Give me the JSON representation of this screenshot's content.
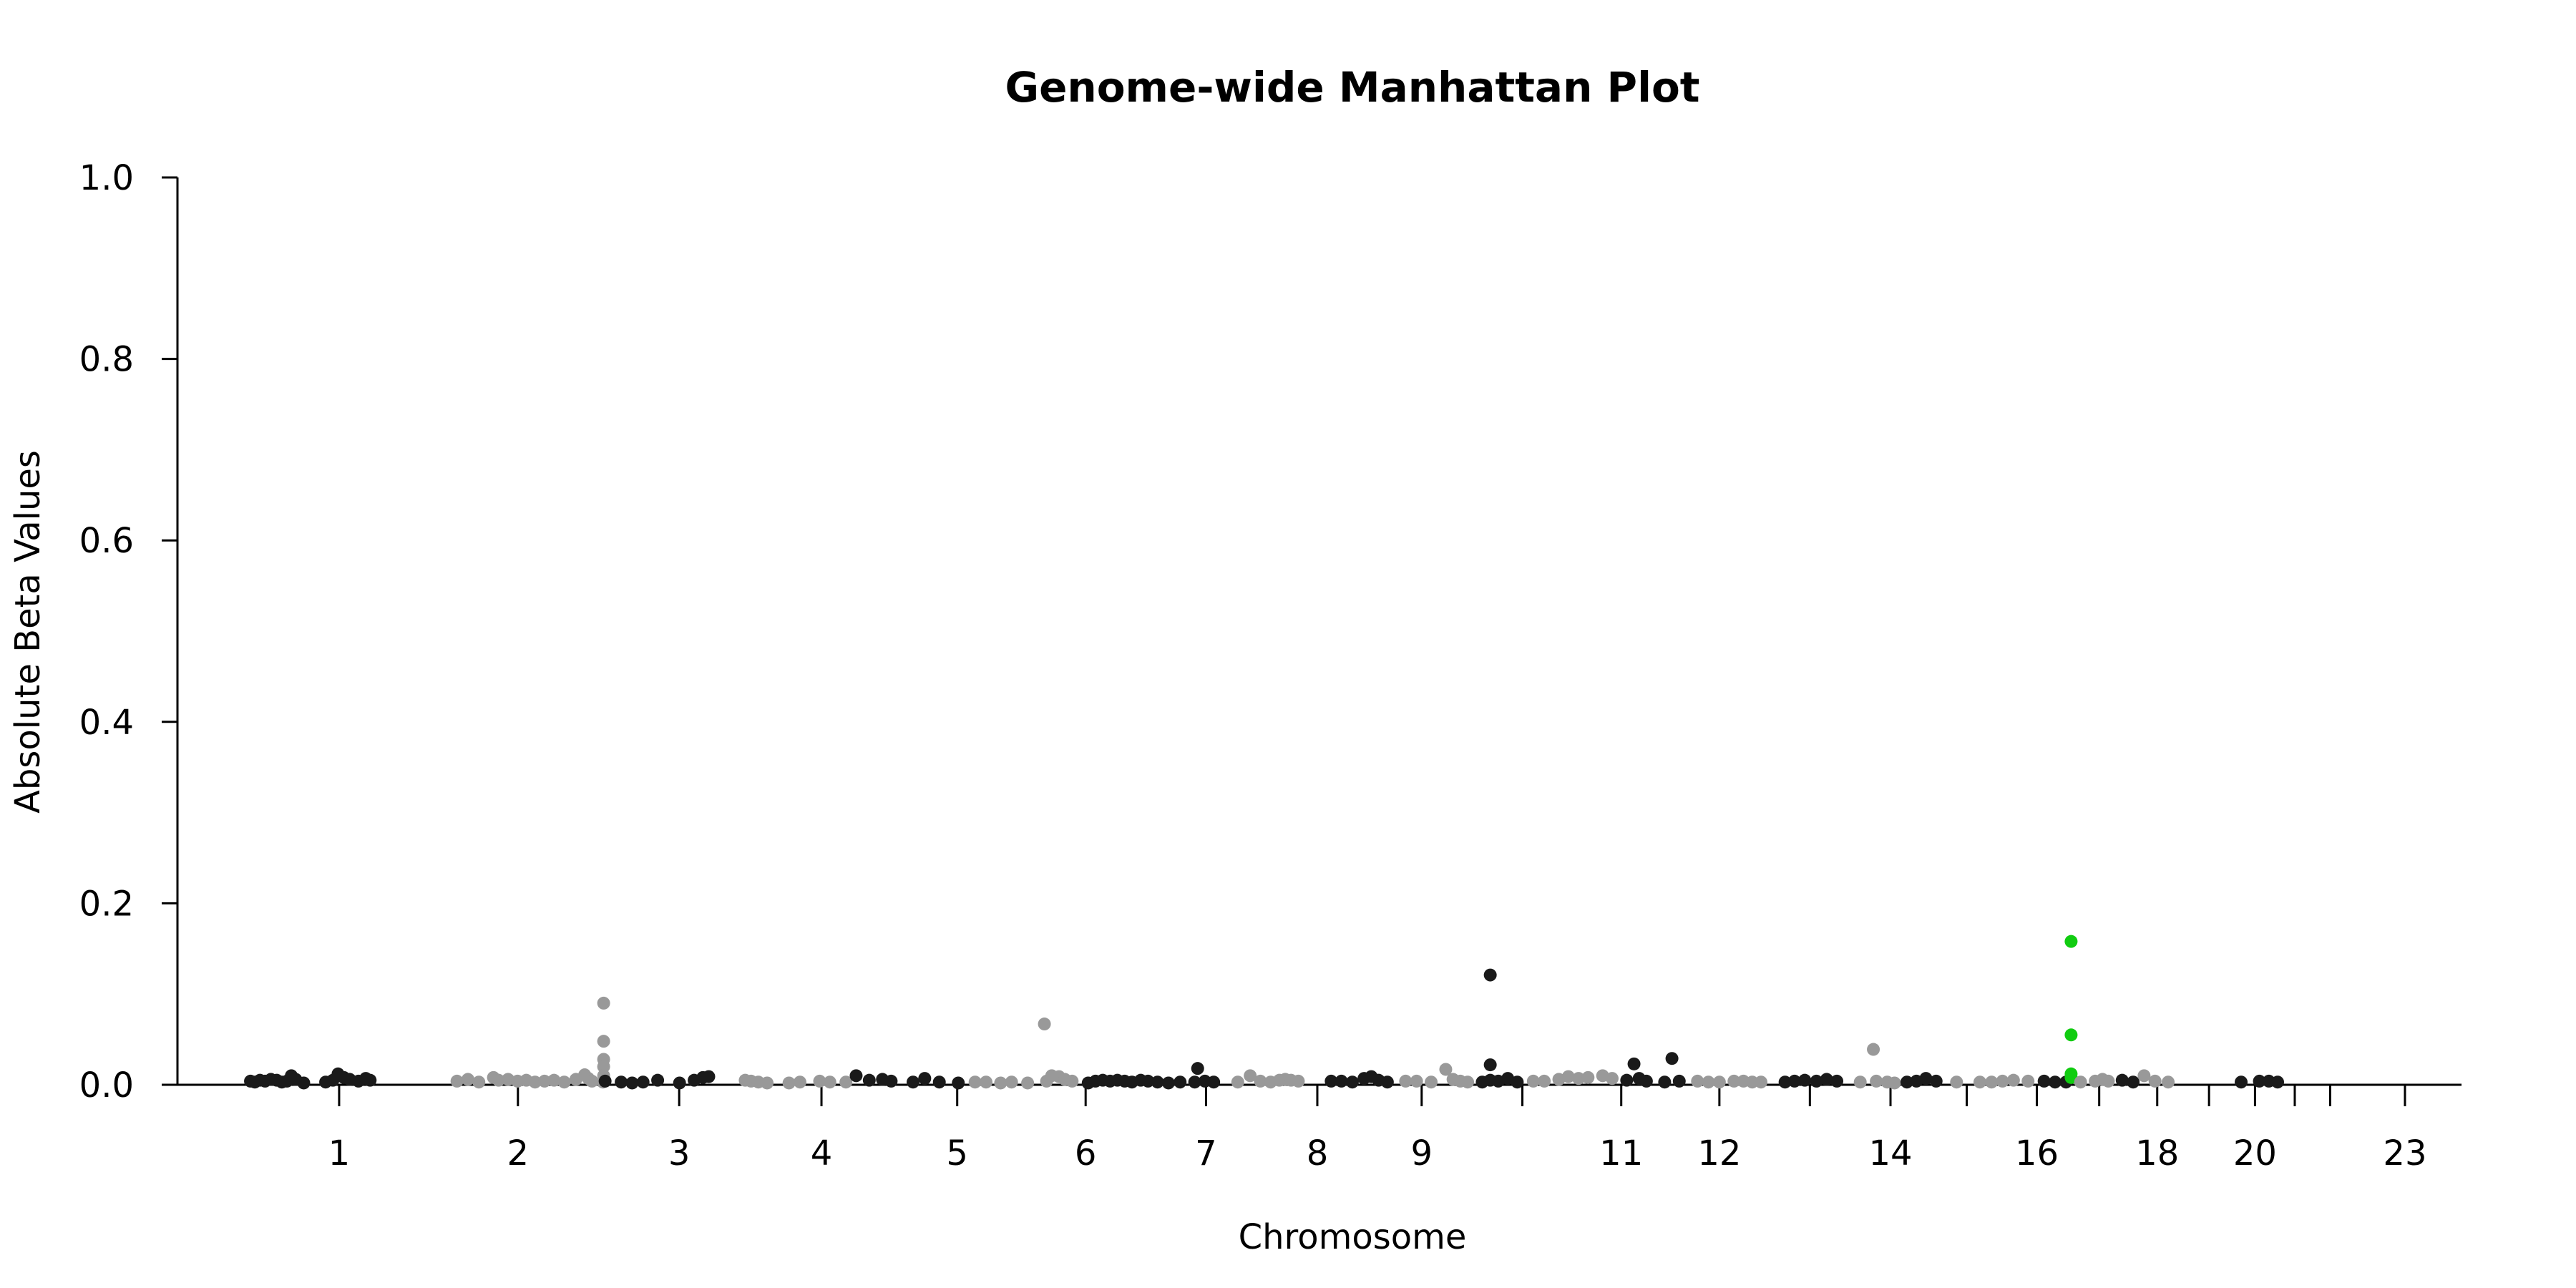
{
  "chart_data": {
    "type": "scatter",
    "title": "Genome-wide Manhattan Plot",
    "xlabel": "Chromosome",
    "ylabel": "Absolute Beta Values",
    "ylim": [
      0,
      1.0
    ],
    "yticks": [
      "0.0",
      "0.2",
      "0.4",
      "0.6",
      "0.8",
      "1.0"
    ],
    "xticks": [
      "1",
      "2",
      "3",
      "4",
      "5",
      "6",
      "7",
      "8",
      "9",
      "11",
      "12",
      "14",
      "16",
      "18",
      "20",
      "23"
    ],
    "grid": false,
    "colors": {
      "dark": "#1a1a1a",
      "light": "#999999",
      "highlight": "#11cc11"
    },
    "chromosomes": [
      {
        "chr": "1",
        "start": 0,
        "end": 247
      },
      {
        "chr": "2",
        "start": 247,
        "end": 490
      },
      {
        "chr": "3",
        "start": 490,
        "end": 689
      },
      {
        "chr": "4",
        "start": 689,
        "end": 880
      },
      {
        "chr": "5",
        "start": 880,
        "end": 1061
      },
      {
        "chr": "6",
        "start": 1061,
        "end": 1232
      },
      {
        "chr": "7",
        "start": 1232,
        "end": 1391
      },
      {
        "chr": "8",
        "start": 1391,
        "end": 1537
      },
      {
        "chr": "9",
        "start": 1537,
        "end": 1677
      },
      {
        "chr": "10",
        "start": 1677,
        "end": 1813
      },
      {
        "chr": "11",
        "start": 1813,
        "end": 1948
      },
      {
        "chr": "12",
        "start": 1948,
        "end": 2082
      },
      {
        "chr": "13",
        "start": 2082,
        "end": 2196
      },
      {
        "chr": "14",
        "start": 2196,
        "end": 2303
      },
      {
        "chr": "15",
        "start": 2303,
        "end": 2405
      },
      {
        "chr": "16",
        "start": 2405,
        "end": 2495
      },
      {
        "chr": "17",
        "start": 2495,
        "end": 2576
      },
      {
        "chr": "18",
        "start": 2576,
        "end": 2654
      },
      {
        "chr": "19",
        "start": 2654,
        "end": 2718
      },
      {
        "chr": "20",
        "start": 2718,
        "end": 2780
      },
      {
        "chr": "21",
        "start": 2780,
        "end": 2827
      },
      {
        "chr": "22",
        "start": 2827,
        "end": 2877
      },
      {
        "chr": "23",
        "start": 2877,
        "end": 3032
      }
    ],
    "points": [
      {
        "chr": "1",
        "pos": 2,
        "y": 0.004
      },
      {
        "chr": "1",
        "pos": 8,
        "y": 0.003
      },
      {
        "chr": "1",
        "pos": 15,
        "y": 0.005
      },
      {
        "chr": "1",
        "pos": 22,
        "y": 0.004
      },
      {
        "chr": "1",
        "pos": 30,
        "y": 0.006
      },
      {
        "chr": "1",
        "pos": 38,
        "y": 0.005
      },
      {
        "chr": "1",
        "pos": 45,
        "y": 0.003
      },
      {
        "chr": "1",
        "pos": 52,
        "y": 0.004
      },
      {
        "chr": "1",
        "pos": 58,
        "y": 0.01
      },
      {
        "chr": "1",
        "pos": 64,
        "y": 0.006
      },
      {
        "chr": "1",
        "pos": 75,
        "y": 0.002
      },
      {
        "chr": "1",
        "pos": 105,
        "y": 0.003
      },
      {
        "chr": "1",
        "pos": 115,
        "y": 0.005
      },
      {
        "chr": "1",
        "pos": 122,
        "y": 0.012
      },
      {
        "chr": "1",
        "pos": 130,
        "y": 0.008
      },
      {
        "chr": "1",
        "pos": 138,
        "y": 0.006
      },
      {
        "chr": "1",
        "pos": 150,
        "y": 0.004
      },
      {
        "chr": "1",
        "pos": 160,
        "y": 0.007
      },
      {
        "chr": "1",
        "pos": 166,
        "y": 0.005
      },
      {
        "chr": "2",
        "pos": 285,
        "y": 0.004
      },
      {
        "chr": "2",
        "pos": 300,
        "y": 0.006
      },
      {
        "chr": "2",
        "pos": 315,
        "y": 0.003
      },
      {
        "chr": "2",
        "pos": 335,
        "y": 0.008
      },
      {
        "chr": "2",
        "pos": 342,
        "y": 0.005
      },
      {
        "chr": "2",
        "pos": 355,
        "y": 0.006
      },
      {
        "chr": "2",
        "pos": 368,
        "y": 0.004
      },
      {
        "chr": "2",
        "pos": 380,
        "y": 0.005
      },
      {
        "chr": "2",
        "pos": 392,
        "y": 0.003
      },
      {
        "chr": "2",
        "pos": 405,
        "y": 0.004
      },
      {
        "chr": "2",
        "pos": 418,
        "y": 0.005
      },
      {
        "chr": "2",
        "pos": 432,
        "y": 0.003
      },
      {
        "chr": "2",
        "pos": 448,
        "y": 0.006
      },
      {
        "chr": "2",
        "pos": 460,
        "y": 0.011
      },
      {
        "chr": "2",
        "pos": 465,
        "y": 0.007
      },
      {
        "chr": "2",
        "pos": 470,
        "y": 0.004
      },
      {
        "chr": "2",
        "pos": 485,
        "y": 0.003
      },
      {
        "chr": "2",
        "pos": 486,
        "y": 0.09
      },
      {
        "chr": "2",
        "pos": 486,
        "y": 0.048
      },
      {
        "chr": "2",
        "pos": 486,
        "y": 0.028
      },
      {
        "chr": "2",
        "pos": 486,
        "y": 0.02
      },
      {
        "chr": "2",
        "pos": 486,
        "y": 0.01
      },
      {
        "chr": "3",
        "pos": 488,
        "y": 0.004
      },
      {
        "chr": "3",
        "pos": 510,
        "y": 0.003
      },
      {
        "chr": "3",
        "pos": 525,
        "y": 0.002
      },
      {
        "chr": "3",
        "pos": 540,
        "y": 0.003
      },
      {
        "chr": "3",
        "pos": 560,
        "y": 0.005
      },
      {
        "chr": "3",
        "pos": 590,
        "y": 0.002
      },
      {
        "chr": "3",
        "pos": 610,
        "y": 0.005
      },
      {
        "chr": "3",
        "pos": 622,
        "y": 0.008
      },
      {
        "chr": "3",
        "pos": 630,
        "y": 0.009
      },
      {
        "chr": "4",
        "pos": 680,
        "y": 0.005
      },
      {
        "chr": "4",
        "pos": 688,
        "y": 0.004
      },
      {
        "chr": "4",
        "pos": 698,
        "y": 0.003
      },
      {
        "chr": "4",
        "pos": 710,
        "y": 0.002
      },
      {
        "chr": "4",
        "pos": 740,
        "y": 0.002
      },
      {
        "chr": "4",
        "pos": 755,
        "y": 0.003
      },
      {
        "chr": "4",
        "pos": 782,
        "y": 0.004
      },
      {
        "chr": "4",
        "pos": 796,
        "y": 0.003
      },
      {
        "chr": "4",
        "pos": 818,
        "y": 0.003
      },
      {
        "chr": "5",
        "pos": 832,
        "y": 0.01
      },
      {
        "chr": "5",
        "pos": 850,
        "y": 0.005
      },
      {
        "chr": "5",
        "pos": 868,
        "y": 0.006
      },
      {
        "chr": "5",
        "pos": 880,
        "y": 0.004
      },
      {
        "chr": "5",
        "pos": 910,
        "y": 0.003
      },
      {
        "chr": "5",
        "pos": 926,
        "y": 0.007
      },
      {
        "chr": "5",
        "pos": 946,
        "y": 0.003
      },
      {
        "chr": "5",
        "pos": 972,
        "y": 0.002
      },
      {
        "chr": "6",
        "pos": 995,
        "y": 0.003
      },
      {
        "chr": "6",
        "pos": 1010,
        "y": 0.003
      },
      {
        "chr": "6",
        "pos": 1030,
        "y": 0.002
      },
      {
        "chr": "6",
        "pos": 1045,
        "y": 0.003
      },
      {
        "chr": "6",
        "pos": 1067,
        "y": 0.002
      },
      {
        "chr": "6",
        "pos": 1090,
        "y": 0.067
      },
      {
        "chr": "6",
        "pos": 1093,
        "y": 0.004
      },
      {
        "chr": "6",
        "pos": 1100,
        "y": 0.01
      },
      {
        "chr": "6",
        "pos": 1110,
        "y": 0.009
      },
      {
        "chr": "6",
        "pos": 1118,
        "y": 0.006
      },
      {
        "chr": "6",
        "pos": 1128,
        "y": 0.004
      },
      {
        "chr": "7",
        "pos": 1150,
        "y": 0.002
      },
      {
        "chr": "7",
        "pos": 1160,
        "y": 0.004
      },
      {
        "chr": "7",
        "pos": 1170,
        "y": 0.005
      },
      {
        "chr": "7",
        "pos": 1180,
        "y": 0.004
      },
      {
        "chr": "7",
        "pos": 1190,
        "y": 0.005
      },
      {
        "chr": "7",
        "pos": 1200,
        "y": 0.004
      },
      {
        "chr": "7",
        "pos": 1210,
        "y": 0.003
      },
      {
        "chr": "7",
        "pos": 1222,
        "y": 0.005
      },
      {
        "chr": "7",
        "pos": 1232,
        "y": 0.004
      },
      {
        "chr": "7",
        "pos": 1245,
        "y": 0.003
      },
      {
        "chr": "7",
        "pos": 1260,
        "y": 0.002
      },
      {
        "chr": "7",
        "pos": 1276,
        "y": 0.003
      },
      {
        "chr": "7",
        "pos": 1296,
        "y": 0.003
      },
      {
        "chr": "7",
        "pos": 1300,
        "y": 0.018
      },
      {
        "chr": "7",
        "pos": 1310,
        "y": 0.004
      },
      {
        "chr": "7",
        "pos": 1322,
        "y": 0.003
      },
      {
        "chr": "8",
        "pos": 1355,
        "y": 0.003
      },
      {
        "chr": "8",
        "pos": 1372,
        "y": 0.01
      },
      {
        "chr": "8",
        "pos": 1386,
        "y": 0.004
      },
      {
        "chr": "8",
        "pos": 1400,
        "y": 0.003
      },
      {
        "chr": "8",
        "pos": 1412,
        "y": 0.005
      },
      {
        "chr": "8",
        "pos": 1420,
        "y": 0.006
      },
      {
        "chr": "8",
        "pos": 1428,
        "y": 0.005
      },
      {
        "chr": "8",
        "pos": 1438,
        "y": 0.004
      },
      {
        "chr": "9",
        "pos": 1483,
        "y": 0.004
      },
      {
        "chr": "9",
        "pos": 1497,
        "y": 0.004
      },
      {
        "chr": "9",
        "pos": 1512,
        "y": 0.003
      },
      {
        "chr": "9",
        "pos": 1528,
        "y": 0.007
      },
      {
        "chr": "9",
        "pos": 1538,
        "y": 0.009
      },
      {
        "chr": "9",
        "pos": 1548,
        "y": 0.005
      },
      {
        "chr": "9",
        "pos": 1560,
        "y": 0.003
      },
      {
        "chr": "10",
        "pos": 1585,
        "y": 0.004
      },
      {
        "chr": "10",
        "pos": 1600,
        "y": 0.004
      },
      {
        "chr": "10",
        "pos": 1620,
        "y": 0.003
      },
      {
        "chr": "10",
        "pos": 1640,
        "y": 0.017
      },
      {
        "chr": "10",
        "pos": 1650,
        "y": 0.006
      },
      {
        "chr": "10",
        "pos": 1660,
        "y": 0.004
      },
      {
        "chr": "10",
        "pos": 1670,
        "y": 0.003
      },
      {
        "chr": "11",
        "pos": 1690,
        "y": 0.003
      },
      {
        "chr": "11",
        "pos": 1701,
        "y": 0.121
      },
      {
        "chr": "11",
        "pos": 1701,
        "y": 0.022
      },
      {
        "chr": "11",
        "pos": 1701,
        "y": 0.005
      },
      {
        "chr": "11",
        "pos": 1712,
        "y": 0.004
      },
      {
        "chr": "11",
        "pos": 1725,
        "y": 0.007
      },
      {
        "chr": "11",
        "pos": 1738,
        "y": 0.003
      },
      {
        "chr": "12",
        "pos": 1760,
        "y": 0.004
      },
      {
        "chr": "12",
        "pos": 1775,
        "y": 0.004
      },
      {
        "chr": "12",
        "pos": 1795,
        "y": 0.006
      },
      {
        "chr": "12",
        "pos": 1808,
        "y": 0.009
      },
      {
        "chr": "12",
        "pos": 1822,
        "y": 0.007
      },
      {
        "chr": "12",
        "pos": 1835,
        "y": 0.008
      },
      {
        "chr": "12",
        "pos": 1855,
        "y": 0.01
      },
      {
        "chr": "12",
        "pos": 1868,
        "y": 0.007
      },
      {
        "chr": "13",
        "pos": 1888,
        "y": 0.005
      },
      {
        "chr": "13",
        "pos": 1898,
        "y": 0.023
      },
      {
        "chr": "13",
        "pos": 1905,
        "y": 0.007
      },
      {
        "chr": "13",
        "pos": 1915,
        "y": 0.004
      },
      {
        "chr": "13",
        "pos": 1940,
        "y": 0.003
      },
      {
        "chr": "13",
        "pos": 1950,
        "y": 0.029
      },
      {
        "chr": "13",
        "pos": 1960,
        "y": 0.004
      },
      {
        "chr": "14",
        "pos": 1985,
        "y": 0.004
      },
      {
        "chr": "14",
        "pos": 2000,
        "y": 0.003
      },
      {
        "chr": "14",
        "pos": 2015,
        "y": 0.003
      },
      {
        "chr": "14",
        "pos": 2035,
        "y": 0.004
      },
      {
        "chr": "14",
        "pos": 2048,
        "y": 0.004
      },
      {
        "chr": "14",
        "pos": 2060,
        "y": 0.003
      },
      {
        "chr": "14",
        "pos": 2072,
        "y": 0.003
      },
      {
        "chr": "15",
        "pos": 2105,
        "y": 0.003
      },
      {
        "chr": "15",
        "pos": 2118,
        "y": 0.004
      },
      {
        "chr": "15",
        "pos": 2132,
        "y": 0.005
      },
      {
        "chr": "15",
        "pos": 2148,
        "y": 0.004
      },
      {
        "chr": "15",
        "pos": 2162,
        "y": 0.006
      },
      {
        "chr": "15",
        "pos": 2176,
        "y": 0.004
      },
      {
        "chr": "16",
        "pos": 2208,
        "y": 0.003
      },
      {
        "chr": "16",
        "pos": 2226,
        "y": 0.039
      },
      {
        "chr": "16",
        "pos": 2230,
        "y": 0.004
      },
      {
        "chr": "16",
        "pos": 2245,
        "y": 0.003
      },
      {
        "chr": "16",
        "pos": 2255,
        "y": 0.002
      },
      {
        "chr": "17",
        "pos": 2272,
        "y": 0.003
      },
      {
        "chr": "17",
        "pos": 2285,
        "y": 0.004
      },
      {
        "chr": "17",
        "pos": 2298,
        "y": 0.007
      },
      {
        "chr": "17",
        "pos": 2312,
        "y": 0.004
      },
      {
        "chr": "18",
        "pos": 2340,
        "y": 0.003
      },
      {
        "chr": "18",
        "pos": 2372,
        "y": 0.003
      },
      {
        "chr": "18",
        "pos": 2388,
        "y": 0.003
      },
      {
        "chr": "18",
        "pos": 2403,
        "y": 0.004
      },
      {
        "chr": "18",
        "pos": 2418,
        "y": 0.005
      },
      {
        "chr": "18",
        "pos": 2438,
        "y": 0.004
      },
      {
        "chr": "19",
        "pos": 2460,
        "y": 0.004
      },
      {
        "chr": "19",
        "pos": 2475,
        "y": 0.003
      },
      {
        "chr": "19",
        "pos": 2490,
        "y": 0.003
      },
      {
        "chr": "19",
        "pos": 2497,
        "y": 0.158,
        "highlight": true
      },
      {
        "chr": "19",
        "pos": 2497,
        "y": 0.055,
        "highlight": true
      },
      {
        "chr": "19",
        "pos": 2497,
        "y": 0.012,
        "highlight": true
      },
      {
        "chr": "19",
        "pos": 2497,
        "y": 0.008,
        "highlight": true
      },
      {
        "chr": "20",
        "pos": 2510,
        "y": 0.003
      },
      {
        "chr": "20",
        "pos": 2530,
        "y": 0.004
      },
      {
        "chr": "20",
        "pos": 2540,
        "y": 0.006
      },
      {
        "chr": "20",
        "pos": 2548,
        "y": 0.004
      },
      {
        "chr": "21",
        "pos": 2567,
        "y": 0.005
      },
      {
        "chr": "21",
        "pos": 2582,
        "y": 0.003
      },
      {
        "chr": "22",
        "pos": 2597,
        "y": 0.01
      },
      {
        "chr": "22",
        "pos": 2612,
        "y": 0.004
      },
      {
        "chr": "22",
        "pos": 2630,
        "y": 0.003
      },
      {
        "chr": "23",
        "pos": 2730,
        "y": 0.003
      },
      {
        "chr": "23",
        "pos": 2755,
        "y": 0.004
      },
      {
        "chr": "23",
        "pos": 2768,
        "y": 0.004
      },
      {
        "chr": "23",
        "pos": 2780,
        "y": 0.003
      }
    ]
  }
}
